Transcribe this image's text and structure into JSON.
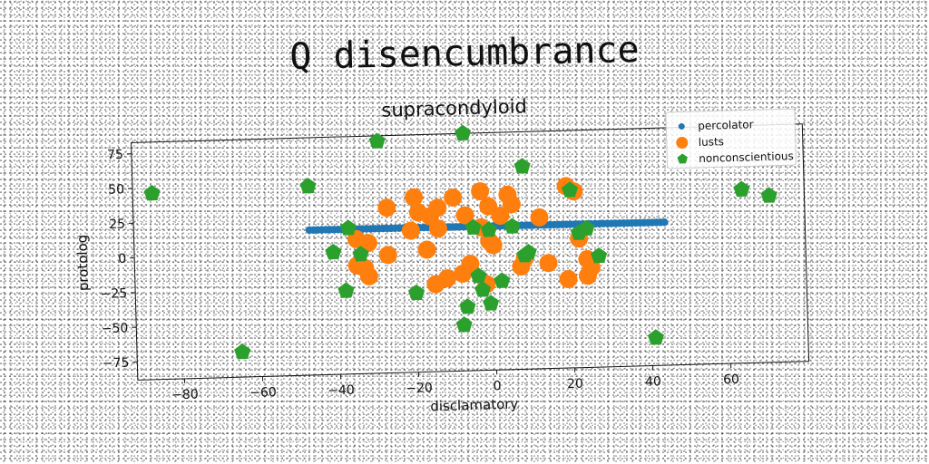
{
  "super_title": "Q disencumbrance",
  "chart_data": {
    "type": "scatter",
    "title": "supracondyloid",
    "xlabel": "disclamatory",
    "ylabel": "protolog",
    "xlim": [
      -92,
      80
    ],
    "ylim": [
      -88,
      83
    ],
    "xticks": [
      -80,
      -60,
      -40,
      -20,
      0,
      20,
      40,
      60
    ],
    "yticks": [
      -75,
      -50,
      -25,
      0,
      25,
      50,
      75
    ],
    "legend_position": "top-right",
    "grid": false,
    "series": [
      {
        "name": "percolator",
        "color": "#1f77b4",
        "marker": "circle",
        "line": {
          "x_start": -47,
          "x_end": 44,
          "y_start": 16.5,
          "y_end": 15,
          "count": 88
        }
      },
      {
        "name": "lusts",
        "color": "#ff7f0e",
        "marker": "circle",
        "points": [
          [
            -20,
            38
          ],
          [
            -10,
            37
          ],
          [
            -3,
            41
          ],
          [
            4,
            38
          ],
          [
            19,
            43
          ],
          [
            21,
            39
          ],
          [
            -27,
            31
          ],
          [
            -14,
            30
          ],
          [
            -16,
            24
          ],
          [
            -19,
            27
          ],
          [
            -1,
            30
          ],
          [
            5,
            31
          ],
          [
            2,
            23
          ],
          [
            -7,
            24
          ],
          [
            12,
            21
          ],
          [
            -21,
            14
          ],
          [
            -14,
            15
          ],
          [
            -3,
            15
          ],
          [
            -32,
            6
          ],
          [
            -35,
            9
          ],
          [
            -1,
            5
          ],
          [
            0,
            2
          ],
          [
            22,
            5
          ],
          [
            -17,
            0
          ],
          [
            -27,
            -3
          ],
          [
            -35,
            -10
          ],
          [
            -33,
            -12
          ],
          [
            -6,
            -11
          ],
          [
            -8,
            -18
          ],
          [
            -12,
            -21
          ],
          [
            -15,
            -25
          ],
          [
            -2,
            -26
          ],
          [
            8,
            -8
          ],
          [
            7,
            -14
          ],
          [
            14,
            -12
          ],
          [
            24,
            -10
          ],
          [
            25,
            -16
          ],
          [
            24,
            -22
          ],
          [
            19,
            -24
          ],
          [
            -32,
            -18
          ]
        ]
      },
      {
        "name": "nonconscientious",
        "color": "#2ca02c",
        "marker": "pentagon",
        "points": [
          [
            -87,
            46
          ],
          [
            -47,
            48
          ],
          [
            -29,
            79
          ],
          [
            -7,
            83
          ],
          [
            8,
            58
          ],
          [
            20,
            40
          ],
          [
            64,
            37
          ],
          [
            71,
            32
          ],
          [
            -37,
            17
          ],
          [
            -5,
            15
          ],
          [
            -1,
            13
          ],
          [
            5,
            15
          ],
          [
            22,
            9
          ],
          [
            24,
            12
          ],
          [
            -41,
            0
          ],
          [
            -34,
            -2
          ],
          [
            8,
            -6
          ],
          [
            9,
            -4
          ],
          [
            27,
            -8
          ],
          [
            -1,
            -40
          ],
          [
            -3,
            -30
          ],
          [
            2,
            -24
          ],
          [
            -4,
            -20
          ],
          [
            -20,
            -31
          ],
          [
            -7,
            -42
          ],
          [
            -8,
            -55
          ],
          [
            -38,
            -28
          ],
          [
            -65,
            -70
          ],
          [
            41,
            -68
          ]
        ]
      }
    ]
  }
}
